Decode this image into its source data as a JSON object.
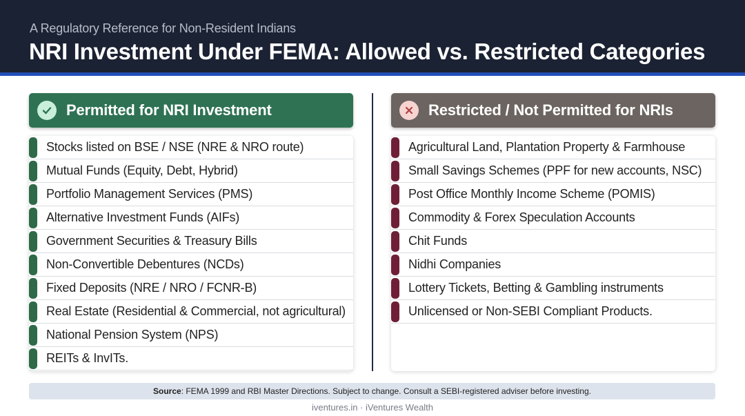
{
  "header": {
    "subtitle": "A Regulatory Reference for Non-Resident Indians",
    "title": "NRI Investment Under FEMA: Allowed vs. Restricted Categories"
  },
  "permitted": {
    "heading": "Permitted for NRI Investment",
    "icon": "check-circle-icon",
    "items": [
      "Stocks listed on BSE / NSE (NRE & NRO route)",
      "Mutual Funds (Equity, Debt, Hybrid)",
      "Portfolio Management Services (PMS)",
      "Alternative Investment Funds (AIFs)",
      "Government Securities & Treasury Bills",
      "Non-Convertible Debentures (NCDs)",
      "Fixed Deposits (NRE / NRO / FCNR-B)",
      "Real Estate (Residential & Commercial, not agricultural)",
      "National Pension System (NPS)",
      "REITs & InvITs."
    ]
  },
  "restricted": {
    "heading": "Restricted / Not Permitted for NRIs",
    "icon": "x-circle-icon",
    "items": [
      "Agricultural Land, Plantation Property & Farmhouse",
      "Small Savings Schemes (PPF for new accounts, NSC)",
      "Post Office Monthly Income Scheme (POMIS)",
      "Commodity & Forex Speculation Accounts",
      "Chit Funds",
      "Nidhi Companies",
      "Lottery Tickets, Betting & Gambling instruments",
      "Unlicensed or Non-SEBI Compliant Products."
    ]
  },
  "source": {
    "label": "Source",
    "text": ": FEMA 1999 and RBI Master Directions. Subject to change. Consult a SEBI-registered adviser before investing."
  },
  "footer": {
    "text": "iventures.in · iVentures Wealth"
  },
  "colors": {
    "header_bg": "#1b2233",
    "header_accent": "#2350b8",
    "permitted": "#2e7253",
    "restricted": "#6b6460",
    "restricted_marker": "#6e1f36"
  }
}
